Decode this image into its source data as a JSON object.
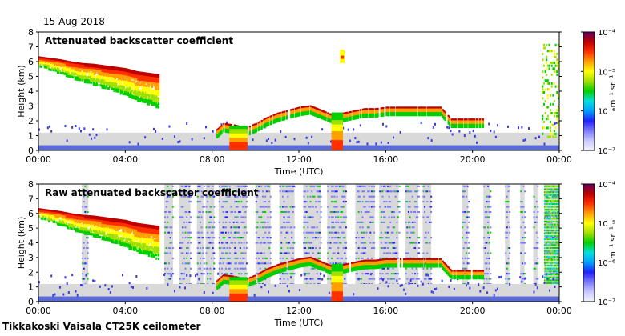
{
  "date": "15 Aug 2018",
  "footer": "Tikkakoski Vaisala CT25K ceilometer",
  "colors": {
    "background_gray": "#d9d9d9",
    "aerosol_blue": "#3a3ae0",
    "surface_blue": "#5a6bd8",
    "colormap": [
      "#f2f2ff",
      "#c8c8ff",
      "#7a7aff",
      "#2020ff",
      "#00a0ff",
      "#00e0e0",
      "#00d000",
      "#a0e000",
      "#ffff00",
      "#ffa000",
      "#ff3000",
      "#c00000",
      "#600060"
    ]
  },
  "chart_data": [
    {
      "type": "heatmap",
      "title": "Attenuated backscatter coefficient",
      "xlabel": "Time (UTC)",
      "ylabel": "Height (km)",
      "xlim": [
        0,
        24
      ],
      "ylim": [
        0,
        8
      ],
      "xticks": [
        "00:00",
        "04:00",
        "08:00",
        "12:00",
        "16:00",
        "20:00",
        "00:00"
      ],
      "yticks": [
        "0",
        "1",
        "2",
        "3",
        "4",
        "5",
        "6",
        "7",
        "8"
      ],
      "colorbar": {
        "label": "m⁻¹ sr⁻¹",
        "min_label": "10⁻⁷",
        "ticks": [
          "10⁻⁷",
          "10⁻⁶",
          "10⁻⁵",
          "10⁻⁴"
        ],
        "scale": "log",
        "range": [
          1e-07,
          0.0001
        ]
      },
      "features": [
        {
          "name": "upper cloud",
          "t": [
            0.0,
            0.5,
            1.0,
            1.5,
            2.0,
            2.5,
            3.0,
            3.5,
            4.0,
            4.5,
            5.0,
            5.5
          ],
          "h": [
            6.3,
            6.2,
            6.1,
            5.95,
            5.85,
            5.8,
            5.7,
            5.6,
            5.5,
            5.3,
            5.2,
            5.1
          ]
        },
        {
          "name": "lower cloud",
          "t": [
            8.2,
            8.5,
            9.0,
            9.5,
            10.0,
            10.5,
            11.0,
            11.5,
            12.0,
            12.5,
            13.0,
            13.5,
            14.0,
            15.0,
            15.5,
            16.0,
            16.5,
            17.0,
            18.0,
            18.5,
            19.0,
            19.5,
            20.0,
            20.5
          ],
          "h": [
            1.4,
            1.8,
            1.7,
            1.5,
            1.8,
            2.2,
            2.5,
            2.7,
            2.9,
            3.0,
            2.7,
            2.4,
            2.5,
            2.8,
            2.8,
            2.9,
            2.9,
            2.9,
            2.9,
            2.9,
            2.1,
            2.1,
            2.1,
            2.1
          ]
        },
        {
          "name": "precipitation",
          "intervals": [
            [
              8.8,
              9.6
            ],
            [
              13.5,
              14.0
            ]
          ]
        },
        {
          "name": "isolated high echo",
          "t": 14.0,
          "h": 6.2
        },
        {
          "name": "late high echoes",
          "interval": [
            23.2,
            24.0
          ],
          "h": [
            1.0,
            7.3
          ]
        }
      ]
    },
    {
      "type": "heatmap",
      "title": "Raw attenuated backscatter coefficient",
      "xlabel": "Time (UTC)",
      "ylabel": "Height (km)",
      "xlim": [
        0,
        24
      ],
      "ylim": [
        0,
        8
      ],
      "xticks": [
        "00:00",
        "04:00",
        "08:00",
        "12:00",
        "16:00",
        "20:00",
        "00:00"
      ],
      "yticks": [
        "0",
        "1",
        "2",
        "3",
        "4",
        "5",
        "6",
        "7",
        "8"
      ],
      "colorbar": {
        "label": "m⁻¹ sr⁻¹",
        "min_label": "10⁻⁷",
        "ticks": [
          "10⁻⁷",
          "10⁻⁶",
          "10⁻⁵",
          "10⁻⁴"
        ],
        "scale": "log",
        "range": [
          1e-07,
          0.0001
        ]
      },
      "features": [
        {
          "name": "upper cloud",
          "t": [
            0.0,
            0.5,
            1.0,
            1.5,
            2.0,
            2.5,
            3.0,
            3.5,
            4.0,
            4.5,
            5.0,
            5.5
          ],
          "h": [
            6.3,
            6.2,
            6.1,
            5.95,
            5.85,
            5.8,
            5.7,
            5.6,
            5.5,
            5.3,
            5.2,
            5.1
          ]
        },
        {
          "name": "lower cloud",
          "t": [
            8.2,
            8.5,
            9.0,
            9.5,
            10.0,
            10.5,
            11.0,
            11.5,
            12.0,
            12.5,
            13.0,
            13.5,
            14.0,
            15.0,
            15.5,
            16.0,
            16.5,
            17.0,
            18.0,
            18.5,
            19.0,
            19.5,
            20.0,
            20.5
          ],
          "h": [
            1.4,
            1.8,
            1.7,
            1.5,
            1.8,
            2.2,
            2.5,
            2.7,
            2.9,
            3.0,
            2.7,
            2.4,
            2.5,
            2.8,
            2.8,
            2.9,
            2.9,
            2.9,
            2.9,
            2.9,
            2.1,
            2.1,
            2.1,
            2.1
          ]
        },
        {
          "name": "precipitation",
          "intervals": [
            [
              8.8,
              9.6
            ],
            [
              13.5,
              14.0
            ]
          ]
        },
        {
          "name": "noise columns",
          "intervals": [
            [
              2.0,
              2.3
            ],
            [
              5.8,
              6.2
            ],
            [
              6.5,
              7.0
            ],
            [
              7.3,
              7.6
            ],
            [
              7.7,
              8.1
            ],
            [
              8.3,
              9.6
            ],
            [
              10.0,
              10.7
            ],
            [
              11.1,
              11.8
            ],
            [
              12.2,
              13.0
            ],
            [
              13.3,
              14.2
            ],
            [
              14.6,
              15.5
            ],
            [
              15.7,
              16.6
            ],
            [
              16.9,
              17.5
            ],
            [
              17.7,
              18.1
            ],
            [
              19.5,
              19.8
            ],
            [
              20.5,
              20.8
            ],
            [
              21.5,
              21.7
            ],
            [
              22.2,
              22.4
            ],
            [
              22.8,
              23.0
            ],
            [
              23.3,
              24.0
            ]
          ]
        }
      ]
    }
  ]
}
